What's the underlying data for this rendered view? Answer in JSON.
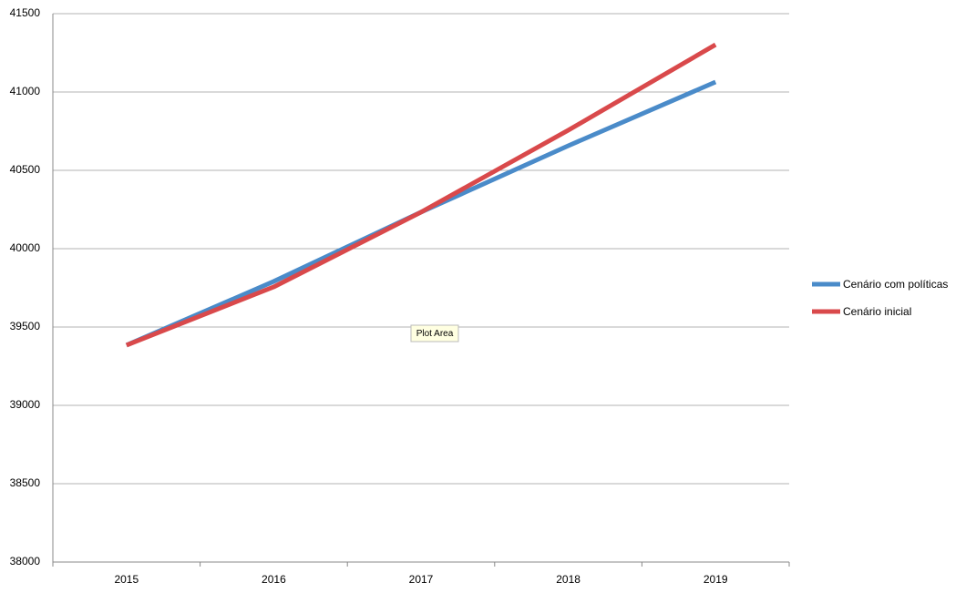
{
  "chart_data": {
    "type": "line",
    "categories": [
      "2015",
      "2016",
      "2017",
      "2018",
      "2019"
    ],
    "series": [
      {
        "name": "Cenário com políticas",
        "color": "#4a8bc9",
        "values": [
          39384,
          39791,
          40233,
          40657,
          41064
        ]
      },
      {
        "name": "Cenário inicial",
        "color": "#d9494b",
        "values": [
          39384,
          39756,
          40233,
          40756,
          41302
        ]
      }
    ],
    "ylim": [
      38000,
      41500
    ],
    "yticks": [
      38000,
      38500,
      39000,
      39500,
      40000,
      40500,
      41000,
      41500
    ],
    "grid": true,
    "legend": "right",
    "annotation": "Plot Area"
  }
}
